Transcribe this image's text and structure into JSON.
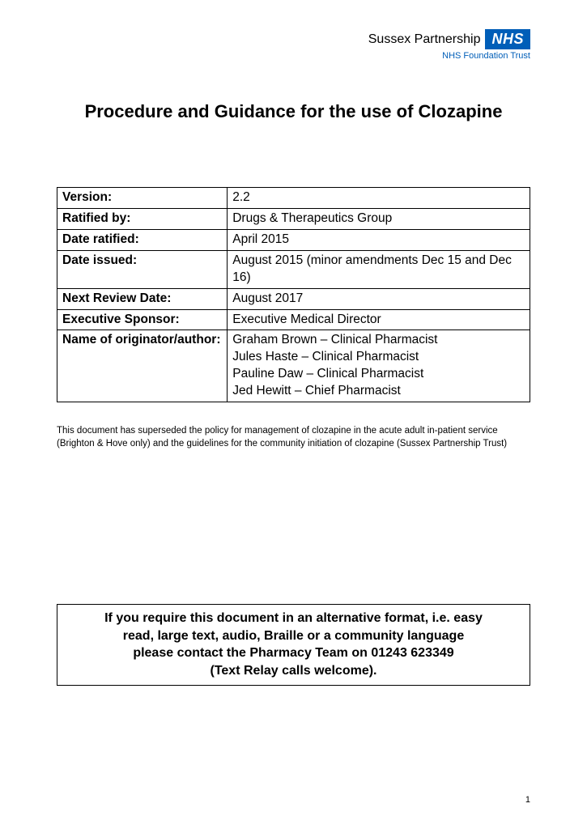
{
  "header": {
    "org_name": "Sussex Partnership",
    "nhs_text": "NHS",
    "trust_line": "NHS Foundation Trust"
  },
  "title": "Procedure and Guidance for the use of Clozapine",
  "meta": {
    "rows": [
      {
        "label": "Version:",
        "value": "2.2"
      },
      {
        "label": "Ratified by:",
        "value": "Drugs & Therapeutics Group"
      },
      {
        "label": "Date ratified:",
        "value": "April 2015"
      },
      {
        "label": "Date issued:",
        "value": "August 2015 (minor amendments Dec 15 and Dec 16)"
      },
      {
        "label": "Next Review Date:",
        "value": "August 2017"
      },
      {
        "label": "Executive Sponsor:",
        "value": "Executive Medical Director"
      },
      {
        "label": "Name of originator/author:",
        "value": "Graham Brown – Clinical Pharmacist\nJules Haste – Clinical Pharmacist\nPauline Daw – Clinical Pharmacist\nJed Hewitt – Chief Pharmacist"
      }
    ]
  },
  "supersede_note": "This document has superseded the policy for management of clozapine in the acute adult in-patient service (Brighton & Hove only) and the guidelines for the community initiation of clozapine (Sussex Partnership Trust)",
  "alt_format": {
    "line1": "If you require this document in an alternative format, i.e. easy",
    "line2": "read, large text, audio, Braille or a community language",
    "line3": "please contact the Pharmacy Team on 01243 623349",
    "line4": "(Text Relay calls welcome)."
  },
  "page_number": "1",
  "colors": {
    "nhs_blue": "#005eb8",
    "text": "#000000",
    "background": "#ffffff"
  },
  "typography": {
    "title_fontsize": 22,
    "body_fontsize": 15.5,
    "note_fontsize": 11.5,
    "altbox_fontsize": 16
  }
}
